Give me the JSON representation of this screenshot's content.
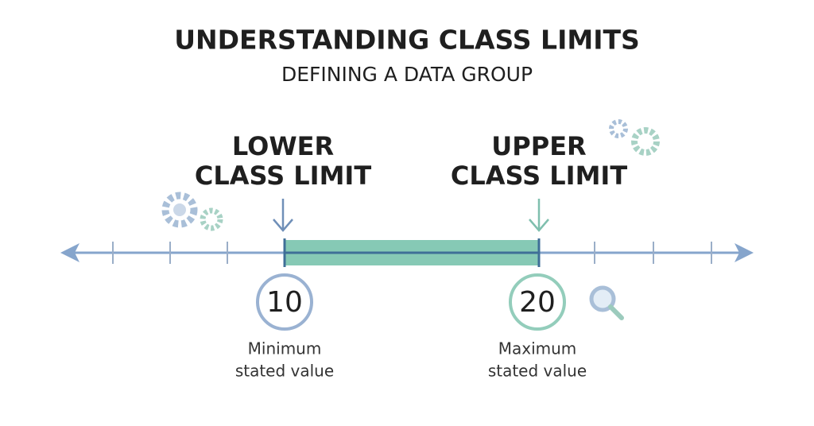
{
  "header": {
    "title": "UNDERSTANDING CLASS LIMITS",
    "subtitle": "DEFINING A DATA GROUP"
  },
  "limits": [
    {
      "label_lines": [
        "LOWER",
        "CLASS LIMIT"
      ],
      "value": 10,
      "caption_lines": [
        "Minimum",
        "stated value"
      ]
    },
    {
      "label_lines": [
        "UPPER",
        "CLASS LIMIT"
      ],
      "value": 20,
      "caption_lines": [
        "Maximum",
        "stated value"
      ]
    }
  ]
}
